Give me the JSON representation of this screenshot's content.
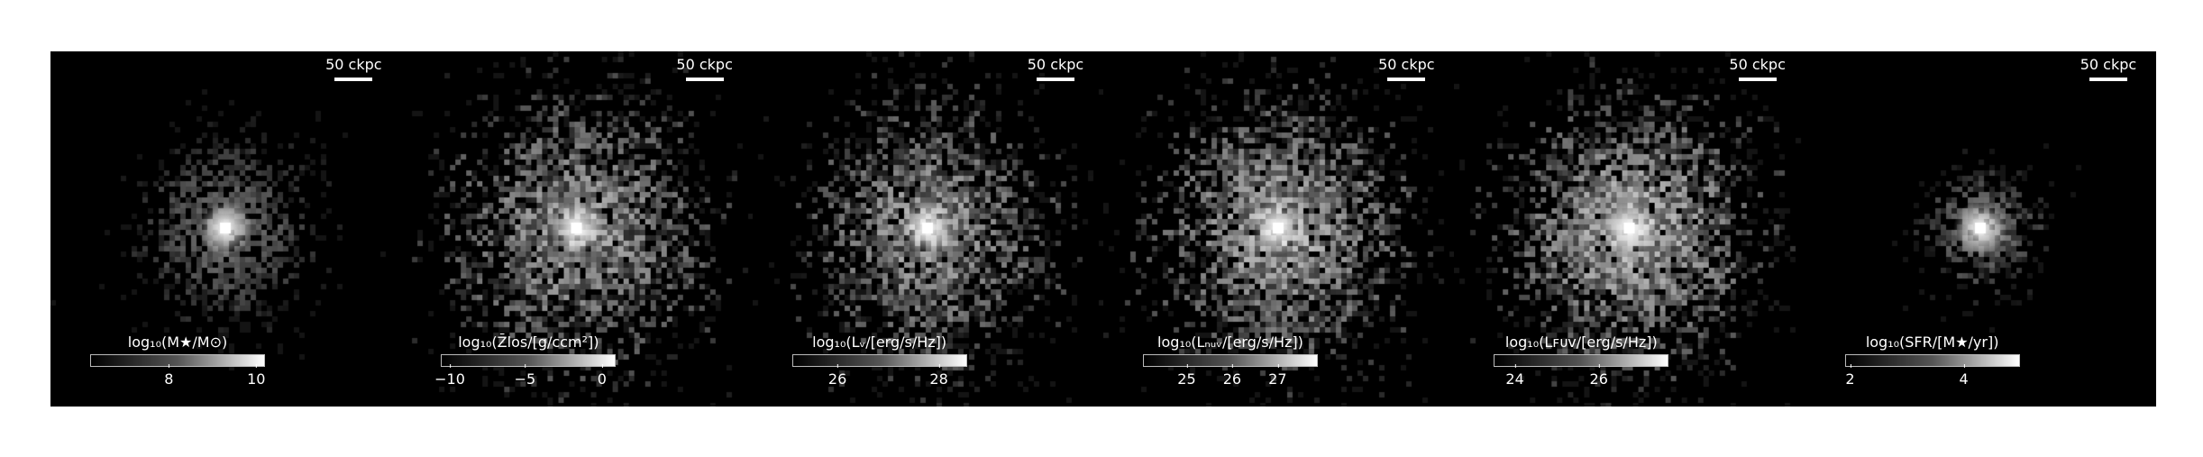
{
  "panels": [
    {
      "scalebar": "50 ckpc",
      "colorbar_label": "log₁₀(M★/M⊙)",
      "ticks": [
        "8",
        "10"
      ],
      "tick_frac": [
        0.45,
        0.95
      ]
    },
    {
      "scalebar": "50 ckpc",
      "colorbar_label": "log₁₀(Z̄los/[g/ccm²])",
      "ticks": [
        "−10",
        "−5",
        "0"
      ],
      "tick_frac": [
        0.05,
        0.48,
        0.92
      ]
    },
    {
      "scalebar": "50 ckpc",
      "colorbar_label": "log₁₀(Lᵥ/[erg/s/Hz])",
      "ticks": [
        "26",
        "28"
      ],
      "tick_frac": [
        0.26,
        0.84
      ]
    },
    {
      "scalebar": "50 ckpc",
      "colorbar_label": "log₁₀(Lₙᵤᵥ/[erg/s/Hz])",
      "ticks": [
        "25",
        "26",
        "27"
      ],
      "tick_frac": [
        0.25,
        0.51,
        0.77
      ]
    },
    {
      "scalebar": "50 ckpc",
      "colorbar_label": "log₁₀(Lꜰᴜᴠ/[erg/s/Hz])",
      "ticks": [
        "24",
        "26"
      ],
      "tick_frac": [
        0.12,
        0.6
      ]
    },
    {
      "scalebar": "50 ckpc",
      "colorbar_label": "log₁₀(SFR/[M★/yr])",
      "ticks": [
        "2",
        "4"
      ],
      "tick_frac": [
        0.03,
        0.68
      ]
    }
  ]
}
